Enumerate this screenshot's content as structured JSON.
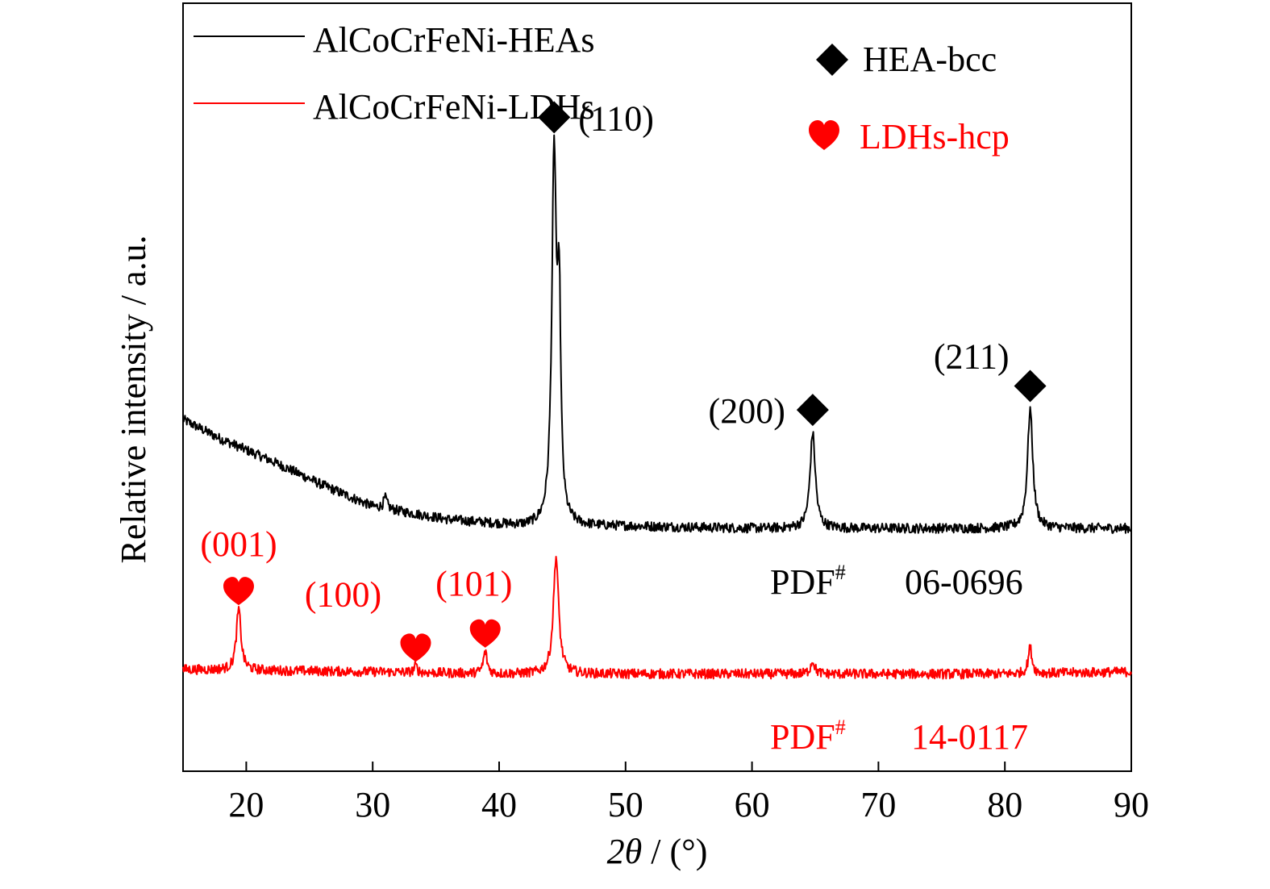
{
  "chart_data": {
    "type": "line",
    "xlabel_prefix": "2",
    "xlabel_theta": "θ",
    "xlabel_suffix": " / (°)",
    "ylabel": "Relative intensity / a.u.",
    "xlim": [
      15,
      90
    ],
    "x_ticks": [
      20,
      30,
      40,
      50,
      60,
      70,
      80,
      90
    ],
    "y_ticks_shown": false,
    "grid": false,
    "legend_position": "top-left",
    "series": [
      {
        "name": "AlCoCrFeNi-HEAs",
        "color": "#000000",
        "profile": {
          "baseline": [
            [
              15,
              0.5
            ],
            [
              18,
              0.41
            ],
            [
              22,
              0.31
            ],
            [
              26,
              0.2
            ],
            [
              30,
              0.1
            ],
            [
              36,
              0.04
            ],
            [
              42,
              0.01
            ],
            [
              50,
              0.01
            ],
            [
              60,
              0.0
            ],
            [
              70,
              0.0
            ],
            [
              80,
              0.0
            ],
            [
              90,
              0.0
            ]
          ],
          "peaks": [
            {
              "x": 31.0,
              "height": 0.05,
              "width": 0.18
            },
            {
              "x": 44.35,
              "height": 1.67,
              "width": 0.22
            },
            {
              "x": 44.75,
              "height": 0.9,
              "width": 0.15
            },
            {
              "x": 64.8,
              "height": 0.44,
              "width": 0.25
            },
            {
              "x": 82.0,
              "height": 0.55,
              "width": 0.25
            }
          ]
        }
      },
      {
        "name": "AlCoCrFeNi-LDHs",
        "color": "#ff0000",
        "profile": {
          "baseline": [
            [
              15,
              0.0
            ],
            [
              30,
              -0.01
            ],
            [
              40,
              -0.02
            ],
            [
              50,
              -0.02
            ],
            [
              60,
              -0.02
            ],
            [
              70,
              -0.02
            ],
            [
              80,
              -0.02
            ],
            [
              90,
              -0.01
            ]
          ],
          "peaks": [
            {
              "x": 19.4,
              "height": 0.28,
              "width": 0.22
            },
            {
              "x": 33.4,
              "height": 0.03,
              "width": 0.15
            },
            {
              "x": 38.9,
              "height": 0.1,
              "width": 0.18
            },
            {
              "x": 44.5,
              "height": 0.54,
              "width": 0.25
            },
            {
              "x": 64.8,
              "height": 0.06,
              "width": 0.2
            },
            {
              "x": 82.0,
              "height": 0.12,
              "width": 0.18
            }
          ]
        }
      }
    ],
    "phase_legend": [
      {
        "marker": "diamond",
        "label": "HEA-bcc",
        "color": "#000000"
      },
      {
        "marker": "heart",
        "label": "LDHs-hcp",
        "color": "#ff0000"
      }
    ],
    "annotations": [
      {
        "text": "(110)",
        "x": 44.35,
        "series": 0,
        "marker": "diamond",
        "color": "#000000"
      },
      {
        "text": "(200)",
        "x": 64.8,
        "series": 0,
        "marker": "diamond",
        "color": "#000000"
      },
      {
        "text": "(211)",
        "x": 82.0,
        "series": 0,
        "marker": "diamond",
        "color": "#000000"
      },
      {
        "text": "(001)",
        "x": 19.4,
        "series": 1,
        "marker": "heart",
        "color": "#ff0000"
      },
      {
        "text": "(100)",
        "x": 33.4,
        "series": 1,
        "marker": "heart",
        "color": "#ff0000"
      },
      {
        "text": "(101)",
        "x": 38.9,
        "series": 1,
        "marker": "heart",
        "color": "#ff0000"
      }
    ],
    "pdf_cards": [
      {
        "prefix": "PDF",
        "sup": "#",
        "number": "06-0696",
        "color": "#000000"
      },
      {
        "prefix": "PDF",
        "sup": "#",
        "number": "14-0117",
        "color": "#ff0000"
      }
    ]
  }
}
